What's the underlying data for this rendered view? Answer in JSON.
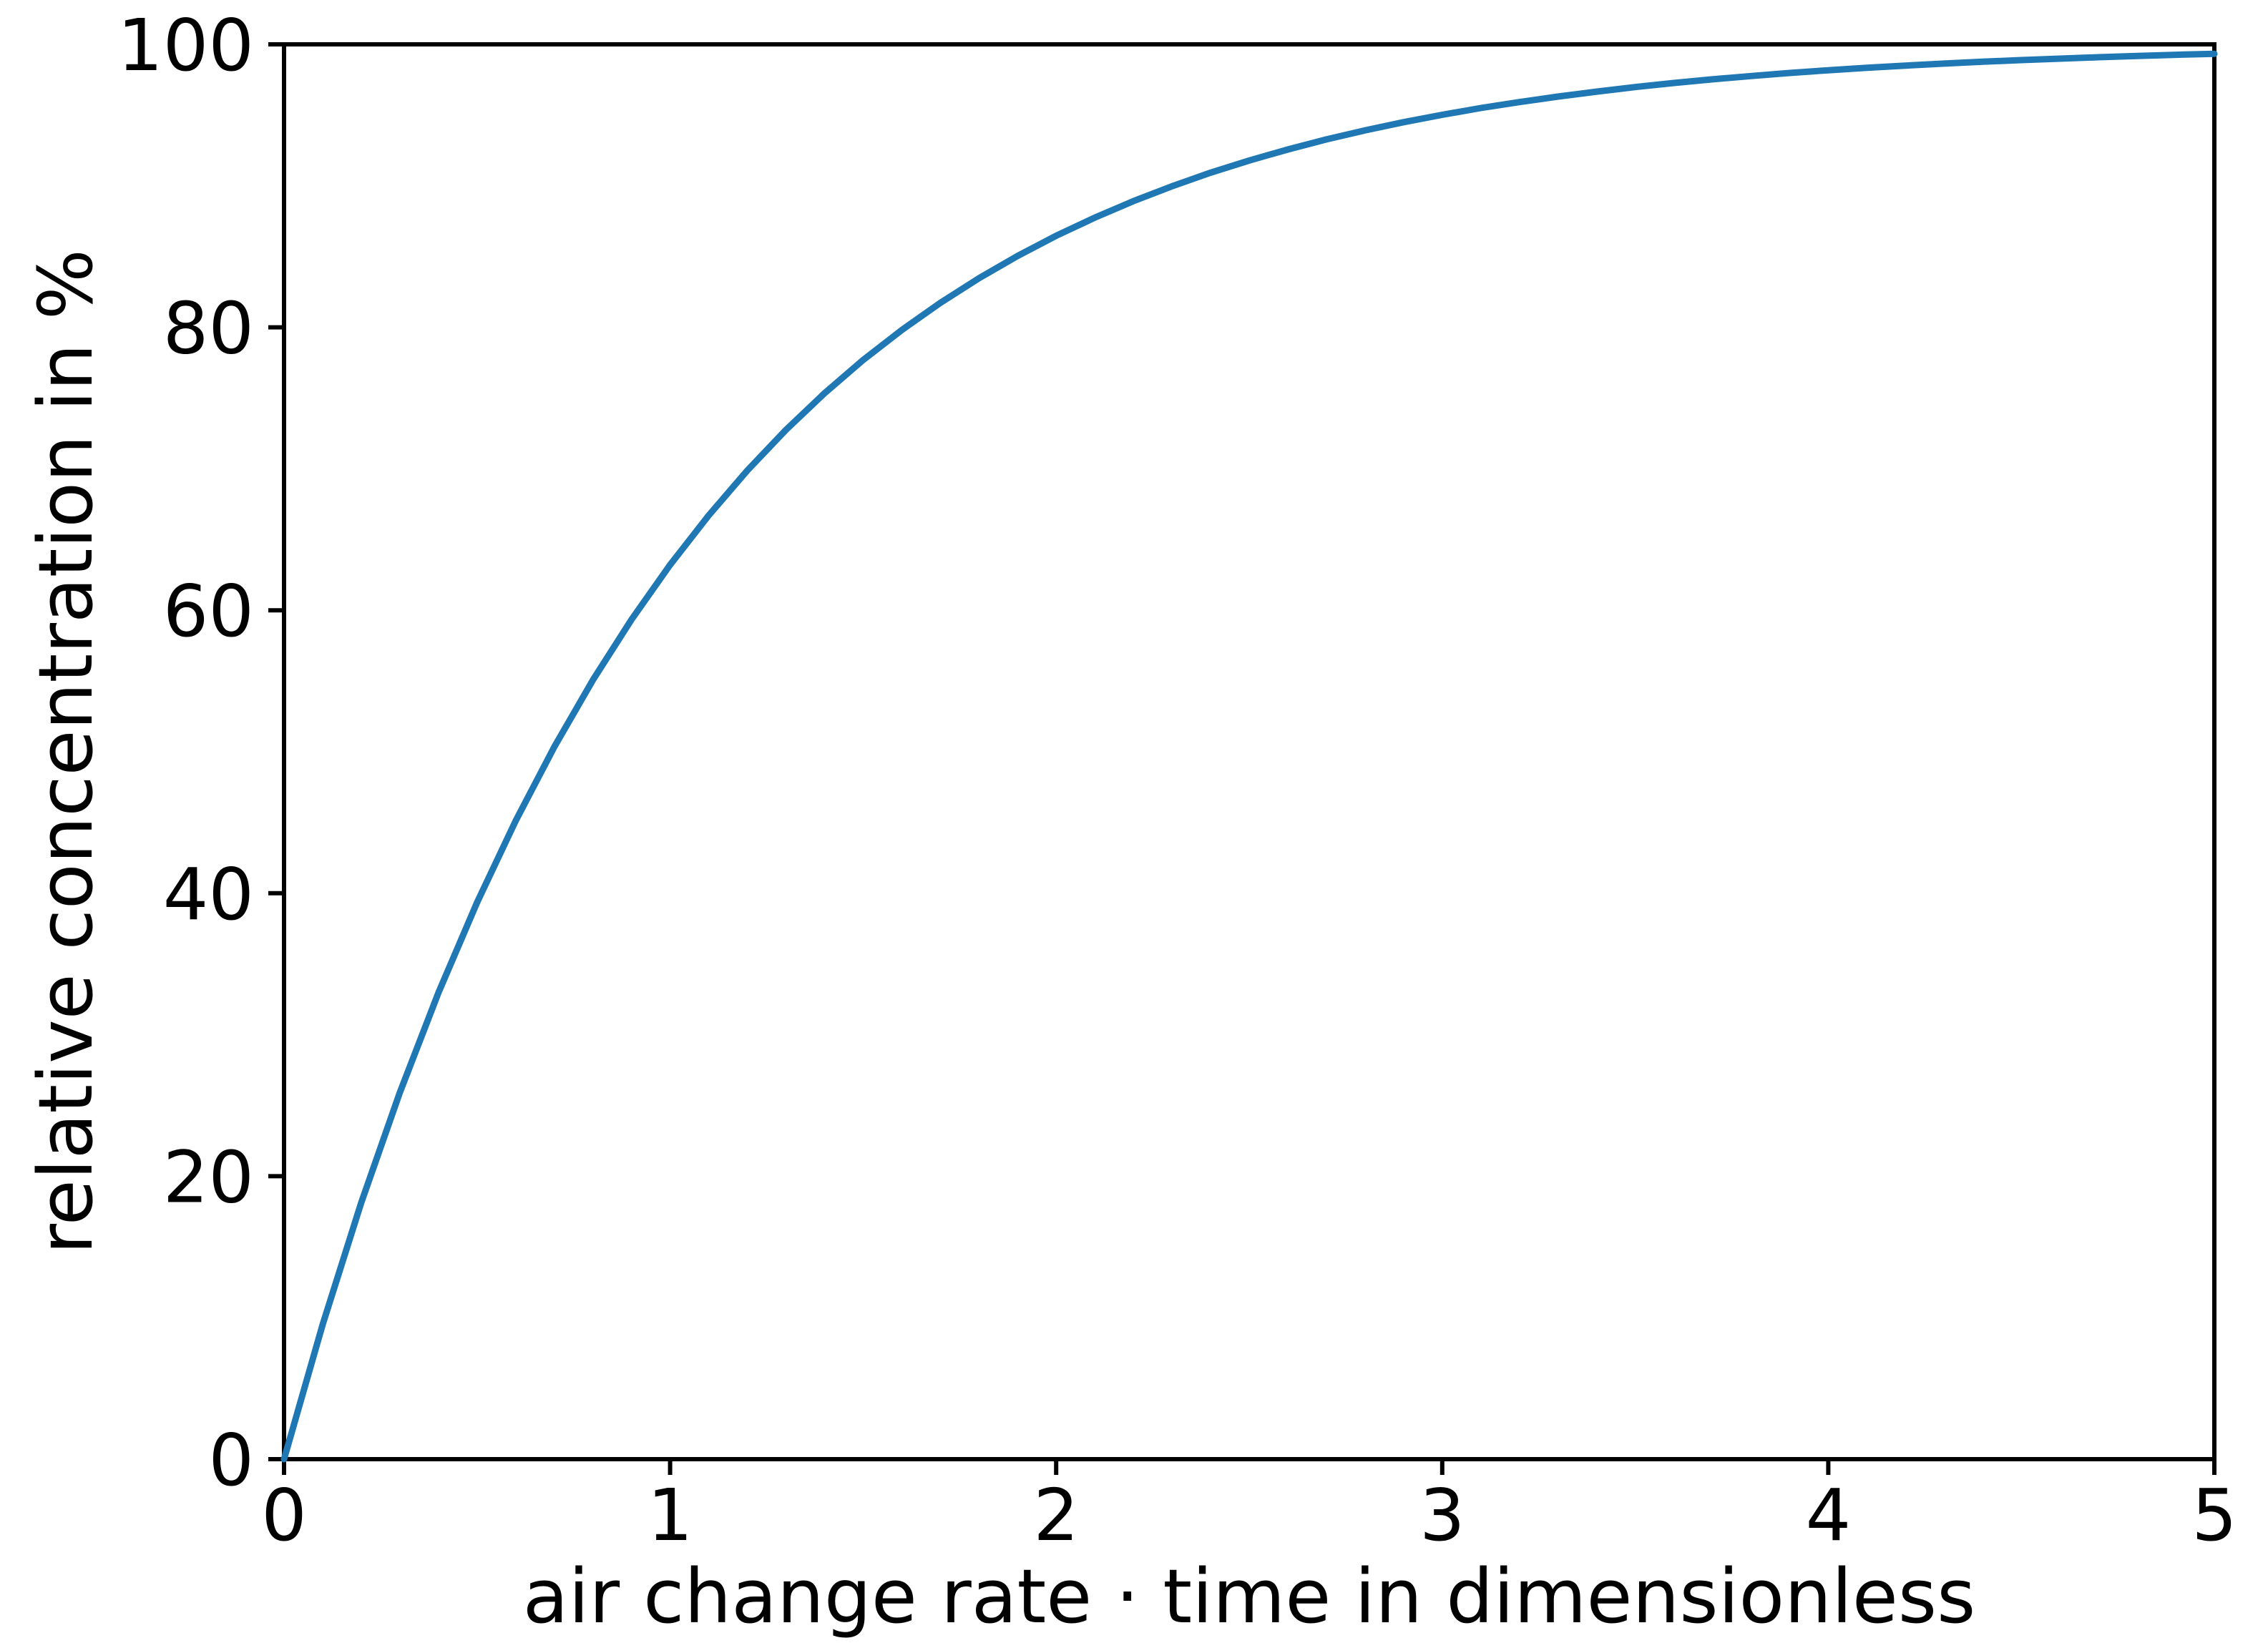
{
  "figure": {
    "background": "#ffffff",
    "axis_color": "#000000",
    "text_color": "#000000"
  },
  "chart_data": {
    "type": "line",
    "title": "",
    "xlabel": "air change rate · time in dimensionless",
    "ylabel": "relative concentration in %",
    "xlim": [
      0,
      5
    ],
    "ylim": [
      0,
      100
    ],
    "xticks": [
      0,
      1,
      2,
      3,
      4,
      5
    ],
    "xtick_labels": [
      "0",
      "1",
      "2",
      "3",
      "4",
      "5"
    ],
    "yticks": [
      0,
      20,
      40,
      60,
      80,
      100
    ],
    "ytick_labels": [
      "0",
      "20",
      "40",
      "60",
      "80",
      "100"
    ],
    "grid": false,
    "legend": "none",
    "series": [
      {
        "name": "relative-concentration-curve",
        "color": "#1f77b4",
        "x": [
          0,
          0.1,
          0.2,
          0.3,
          0.4,
          0.5,
          0.6,
          0.7,
          0.8,
          0.9,
          1,
          1.1,
          1.2,
          1.3,
          1.4,
          1.5,
          1.6,
          1.7,
          1.8,
          1.9,
          2,
          2.1,
          2.2,
          2.3,
          2.4,
          2.5,
          2.6,
          2.7,
          2.8,
          2.9,
          3,
          3.1,
          3.2,
          3.3,
          3.4,
          3.5,
          3.6,
          3.7,
          3.8,
          3.9,
          4,
          4.1,
          4.2,
          4.3,
          4.4,
          4.5,
          4.6,
          4.7,
          4.8,
          4.9,
          5
        ],
        "y": [
          0,
          9.52,
          18.13,
          25.92,
          32.97,
          39.35,
          45.12,
          50.34,
          55.07,
          59.34,
          63.21,
          66.71,
          69.88,
          72.75,
          75.34,
          77.69,
          79.81,
          81.73,
          83.47,
          85.04,
          86.47,
          87.75,
          88.92,
          89.97,
          90.93,
          91.79,
          92.57,
          93.28,
          93.92,
          94.5,
          95.02,
          95.5,
          95.92,
          96.31,
          96.66,
          96.98,
          97.27,
          97.53,
          97.76,
          97.98,
          98.17,
          98.34,
          98.5,
          98.64,
          98.77,
          98.89,
          98.99,
          99.09,
          99.18,
          99.26,
          99.33
        ]
      }
    ]
  }
}
